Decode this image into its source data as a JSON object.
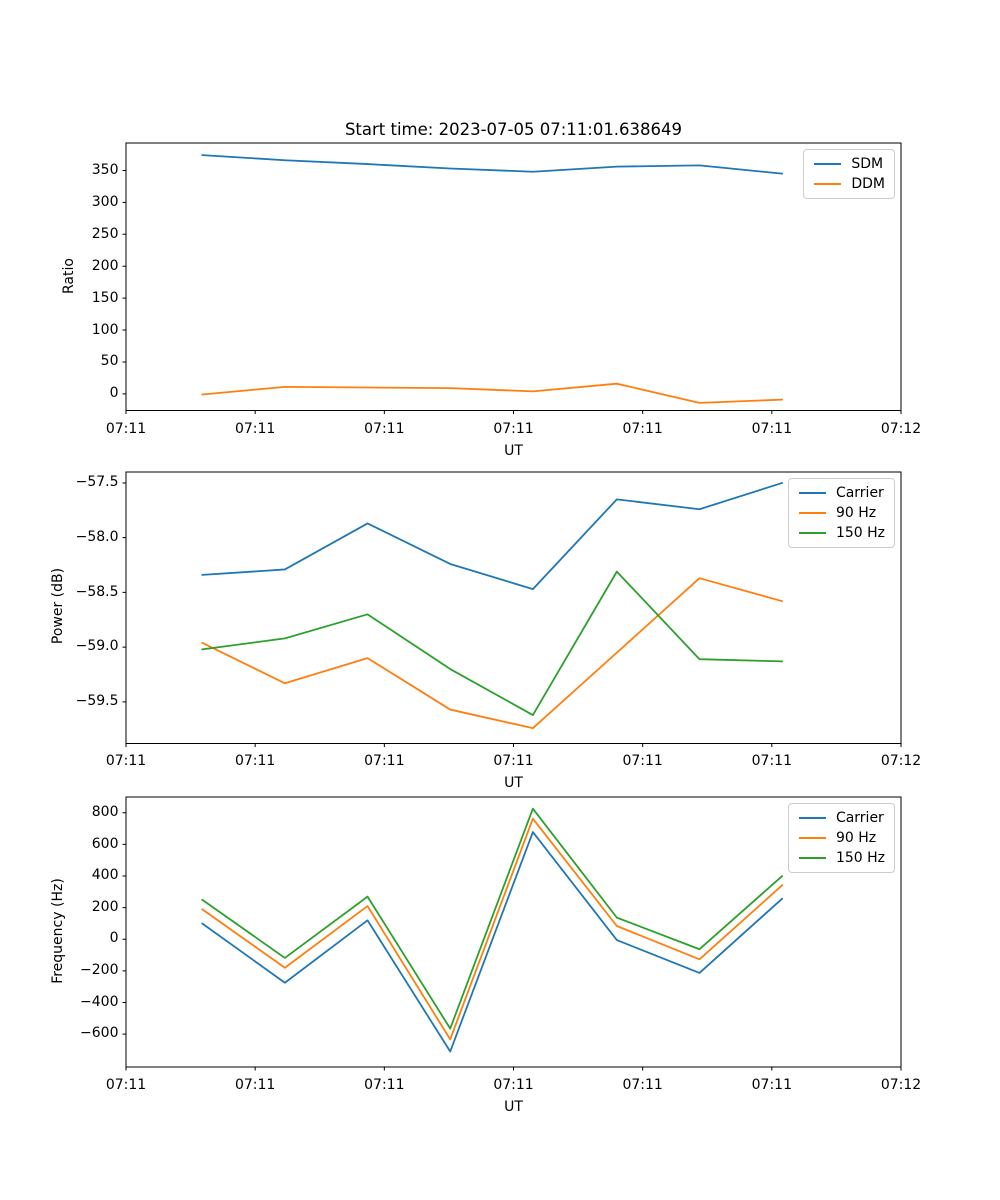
{
  "figure": {
    "title": "Start time: 2023-07-05 07:11:01.638649"
  },
  "chart_data": [
    {
      "type": "line",
      "title": "Start time: 2023-07-05 07:11:01.638649",
      "xlabel": "UT",
      "ylabel": "Ratio",
      "grid": false,
      "legend_position": "upper right",
      "x_seconds": [
        5.9,
        12.3,
        18.7,
        25.1,
        31.5,
        38.0,
        44.4,
        50.8
      ],
      "xlim_seconds": [
        0,
        60
      ],
      "xtick_seconds": [
        0,
        10,
        20,
        30,
        40,
        50,
        60
      ],
      "xticklabels": [
        "07:11",
        "07:11",
        "07:11",
        "07:11",
        "07:11",
        "07:11",
        "07:12"
      ],
      "ytick_values": [
        0,
        50,
        100,
        150,
        200,
        250,
        300,
        350
      ],
      "yticklabels": [
        "0",
        "50",
        "100",
        "150",
        "200",
        "250",
        "300",
        "350"
      ],
      "ylim": [
        -26,
        393
      ],
      "series": [
        {
          "name": "SDM",
          "color": "#1f77b4",
          "values": [
            374,
            366,
            360,
            353,
            348,
            356,
            358,
            345
          ]
        },
        {
          "name": "DDM",
          "color": "#ff7f0e",
          "values": [
            -1,
            11,
            10,
            9,
            4,
            16,
            -14,
            -9
          ]
        }
      ]
    },
    {
      "type": "line",
      "title": "",
      "xlabel": "UT",
      "ylabel": "Power (dB)",
      "grid": false,
      "legend_position": "upper right",
      "x_seconds": [
        5.9,
        12.3,
        18.7,
        25.1,
        31.5,
        38.0,
        44.4,
        50.8
      ],
      "xlim_seconds": [
        0,
        60
      ],
      "xtick_seconds": [
        0,
        10,
        20,
        30,
        40,
        50,
        60
      ],
      "xticklabels": [
        "07:11",
        "07:11",
        "07:11",
        "07:11",
        "07:11",
        "07:11",
        "07:12"
      ],
      "ytick_values": [
        -57.5,
        -58.0,
        -58.5,
        -59.0,
        -59.5
      ],
      "yticklabels": [
        "−57.5",
        "−58.0",
        "−58.5",
        "−59.0",
        "−59.5"
      ],
      "ylim": [
        -59.88,
        -57.4
      ],
      "series": [
        {
          "name": "Carrier",
          "color": "#1f77b4",
          "values": [
            -58.34,
            -58.29,
            -57.87,
            -58.24,
            -58.47,
            -57.65,
            -57.74,
            -57.5
          ]
        },
        {
          "name": "90 Hz",
          "color": "#ff7f0e",
          "values": [
            -58.96,
            -59.33,
            -59.1,
            -59.57,
            -59.74,
            -59.05,
            -58.37,
            -58.58
          ]
        },
        {
          "name": "150 Hz",
          "color": "#2ca02c",
          "values": [
            -59.02,
            -58.92,
            -58.7,
            -59.2,
            -59.62,
            -58.31,
            -59.11,
            -59.13
          ]
        }
      ]
    },
    {
      "type": "line",
      "title": "",
      "xlabel": "UT",
      "ylabel": "Frequency (Hz)",
      "grid": false,
      "legend_position": "upper right",
      "x_seconds": [
        5.9,
        12.3,
        18.7,
        25.1,
        31.5,
        38.0,
        44.4,
        50.8
      ],
      "xlim_seconds": [
        0,
        60
      ],
      "xtick_seconds": [
        0,
        10,
        20,
        30,
        40,
        50,
        60
      ],
      "xticklabels": [
        "07:11",
        "07:11",
        "07:11",
        "07:11",
        "07:11",
        "07:11",
        "07:12"
      ],
      "ytick_values": [
        800,
        600,
        400,
        200,
        0,
        -200,
        -400,
        -600
      ],
      "yticklabels": [
        "800",
        "600",
        "400",
        "200",
        "0",
        "−200",
        "−400",
        "−600"
      ],
      "ylim": [
        -808,
        900
      ],
      "series": [
        {
          "name": "Carrier",
          "color": "#1f77b4",
          "values": [
            100,
            -275,
            120,
            -710,
            678,
            -5,
            -213,
            257
          ]
        },
        {
          "name": "90 Hz",
          "color": "#ff7f0e",
          "values": [
            190,
            -180,
            210,
            -633,
            763,
            84,
            -127,
            342
          ]
        },
        {
          "name": "150 Hz",
          "color": "#2ca02c",
          "values": [
            250,
            -118,
            270,
            -565,
            826,
            137,
            -63,
            400
          ]
        }
      ]
    }
  ]
}
